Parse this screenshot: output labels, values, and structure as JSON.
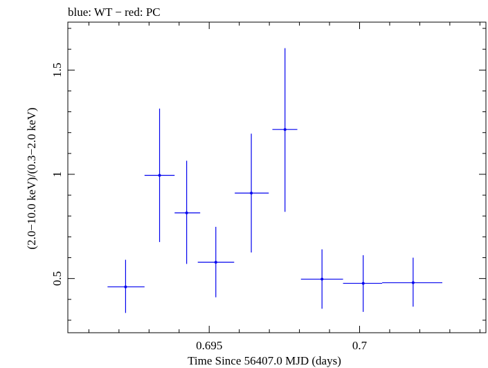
{
  "chart_data": {
    "type": "scatter",
    "title": "blue: WT − red: PC",
    "xlabel": "Time Since 56407.0 MJD (days)",
    "ylabel": "(2.0−10.0 keV)/(0.3−2.0 keV)",
    "xlim": [
      0.6903,
      0.7042
    ],
    "ylim": [
      0.24,
      1.73
    ],
    "x_ticks": [
      {
        "value": 0.695,
        "label": "0.695"
      },
      {
        "value": 0.7,
        "label": "0.7"
      }
    ],
    "y_ticks": [
      {
        "value": 0.5,
        "label": "0.5"
      },
      {
        "value": 1.0,
        "label": "1"
      },
      {
        "value": 1.5,
        "label": "1.5"
      }
    ],
    "grid": false,
    "series": [
      {
        "color": "#0000ee",
        "points": [
          {
            "x": 0.69222,
            "x_lo": 0.69162,
            "x_hi": 0.69285,
            "y": 0.46,
            "y_lo": 0.335,
            "y_hi": 0.59
          },
          {
            "x": 0.69335,
            "x_lo": 0.69285,
            "x_hi": 0.69385,
            "y": 0.995,
            "y_lo": 0.675,
            "y_hi": 1.315
          },
          {
            "x": 0.69425,
            "x_lo": 0.69385,
            "x_hi": 0.6947,
            "y": 0.815,
            "y_lo": 0.57,
            "y_hi": 1.065
          },
          {
            "x": 0.69522,
            "x_lo": 0.69462,
            "x_hi": 0.69583,
            "y": 0.578,
            "y_lo": 0.41,
            "y_hi": 0.748
          },
          {
            "x": 0.6964,
            "x_lo": 0.69585,
            "x_hi": 0.69698,
            "y": 0.91,
            "y_lo": 0.625,
            "y_hi": 1.195
          },
          {
            "x": 0.69752,
            "x_lo": 0.6971,
            "x_hi": 0.69793,
            "y": 1.215,
            "y_lo": 0.82,
            "y_hi": 1.605
          },
          {
            "x": 0.69875,
            "x_lo": 0.69805,
            "x_hi": 0.69945,
            "y": 0.497,
            "y_lo": 0.355,
            "y_hi": 0.64
          },
          {
            "x": 0.70012,
            "x_lo": 0.69945,
            "x_hi": 0.70075,
            "y": 0.477,
            "y_lo": 0.34,
            "y_hi": 0.612
          },
          {
            "x": 0.70178,
            "x_lo": 0.70075,
            "x_hi": 0.70275,
            "y": 0.48,
            "y_lo": 0.365,
            "y_hi": 0.6
          }
        ]
      }
    ]
  }
}
